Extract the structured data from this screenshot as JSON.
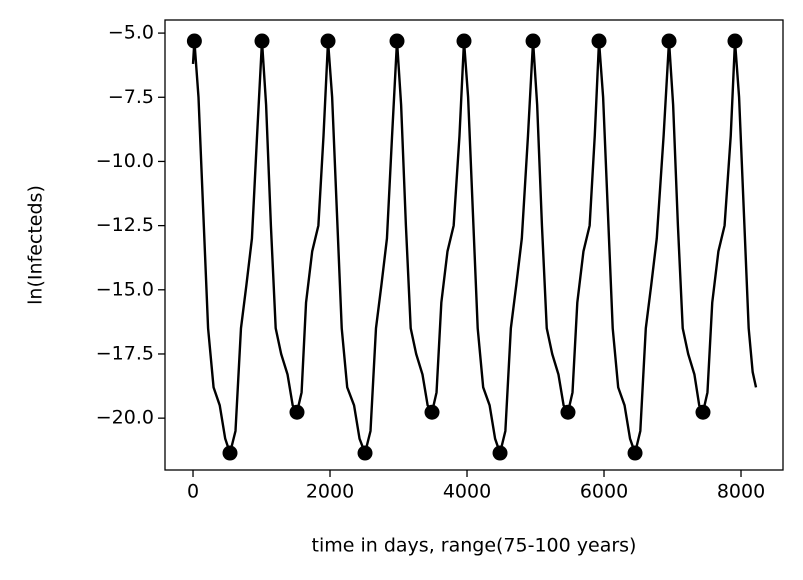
{
  "chart_data": {
    "type": "line",
    "xlabel": "time in days, range(75-100 years)",
    "ylabel": "ln(Infecteds)",
    "xlim": [
      -409,
      8613
    ],
    "ylim": [
      -22.02,
      -4.49
    ],
    "xticks": [
      0,
      2000,
      4000,
      6000,
      8000
    ],
    "yticks": [
      {
        "value": -5,
        "label": "−5.0"
      },
      {
        "value": -7.5,
        "label": "−7.5"
      },
      {
        "value": -10,
        "label": "−10.0"
      },
      {
        "value": -12.5,
        "label": "−12.5"
      },
      {
        "value": -15,
        "label": "−15.0"
      },
      {
        "value": -17.5,
        "label": "−17.5"
      },
      {
        "value": -20,
        "label": "−20.0"
      }
    ],
    "grid": false,
    "x": [
      0,
      20,
      80,
      150,
      220,
      300,
      390,
      470,
      540,
      620,
      700,
      780,
      860,
      935,
      1007,
      1067,
      1137,
      1207,
      1287,
      1380,
      1455,
      1518,
      1585,
      1650,
      1740,
      1830,
      1905,
      1971,
      2031,
      2101,
      2171,
      2251,
      2351,
      2431,
      2511,
      2591,
      2671,
      2751,
      2831,
      2906,
      2978,
      3038,
      3108,
      3178,
      3258,
      3350,
      3425,
      3489,
      3555,
      3625,
      3715,
      3805,
      3890,
      3956,
      4016,
      4086,
      4156,
      4236,
      4330,
      4410,
      4482,
      4560,
      4640,
      4720,
      4800,
      4890,
      4964,
      5024,
      5094,
      5164,
      5244,
      5335,
      5410,
      5474,
      5540,
      5610,
      5700,
      5790,
      5865,
      5927,
      5987,
      6057,
      6127,
      6207,
      6300,
      6380,
      6453,
      6530,
      6610,
      6690,
      6770,
      6870,
      6949,
      7009,
      7079,
      7149,
      7229,
      7320,
      7390,
      7445,
      7510,
      7580,
      7670,
      7760,
      7850,
      7912,
      7972,
      8042,
      8112,
      8170,
      8219
    ],
    "series": [
      {
        "color": "#000000",
        "mode": "line",
        "values": [
          -6.2,
          -5.31,
          -7.5,
          -12,
          -16.5,
          -18.8,
          -19.5,
          -20.8,
          -21.36,
          -20.5,
          -16.5,
          -14.8,
          -13,
          -9,
          -5.31,
          -7.8,
          -12.5,
          -16.5,
          -17.5,
          -18.3,
          -19.5,
          -19.77,
          -19,
          -15.5,
          -13.5,
          -12.5,
          -9,
          -5.31,
          -7.5,
          -12,
          -16.5,
          -18.8,
          -19.5,
          -20.8,
          -21.36,
          -20.5,
          -16.5,
          -14.8,
          -13,
          -9,
          -5.31,
          -7.8,
          -12.5,
          -16.5,
          -17.5,
          -18.3,
          -19.5,
          -19.77,
          -19,
          -15.5,
          -13.5,
          -12.5,
          -9,
          -5.31,
          -7.5,
          -12,
          -16.5,
          -18.8,
          -19.5,
          -20.8,
          -21.36,
          -20.5,
          -16.5,
          -14.8,
          -13,
          -9,
          -5.31,
          -7.8,
          -12.5,
          -16.5,
          -17.5,
          -18.3,
          -19.5,
          -19.77,
          -19,
          -15.5,
          -13.5,
          -12.5,
          -9,
          -5.31,
          -7.5,
          -12,
          -16.5,
          -18.8,
          -19.5,
          -20.8,
          -21.36,
          -20.5,
          -16.5,
          -14.8,
          -13,
          -9,
          -5.31,
          -7.8,
          -12.5,
          -16.5,
          -17.5,
          -18.3,
          -19.5,
          -19.77,
          -19,
          -15.5,
          -13.5,
          -12.5,
          -9,
          -5.31,
          -7.5,
          -12,
          -16.5,
          -18.2,
          -18.8
        ]
      },
      {
        "color": "#000000",
        "mode": "markers",
        "x": [
          20,
          540,
          1007,
          1518,
          1971,
          2511,
          2978,
          3489,
          3956,
          4482,
          4964,
          5474,
          5927,
          6453,
          6949,
          7445,
          7912
        ],
        "values": [
          -5.31,
          -21.36,
          -5.31,
          -19.77,
          -5.31,
          -21.36,
          -5.31,
          -19.77,
          -5.31,
          -21.36,
          -5.31,
          -19.77,
          -5.31,
          -21.36,
          -5.31,
          -19.77,
          -5.31
        ]
      }
    ]
  }
}
